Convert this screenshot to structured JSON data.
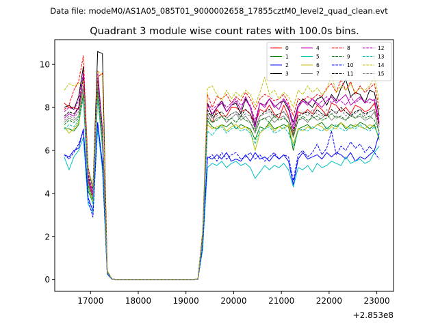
{
  "suptitle": "Data file: modeM0/AS1A05_085T01_9000002658_17855cztM0_level2_quad_clean.evt",
  "chart_data": {
    "type": "line",
    "title": "Quadrant 3 module wise count rates with 100.0s bins.",
    "xlabel": "",
    "ylabel": "",
    "x_offset_label": "+2.853e8",
    "xlim": [
      16250,
      23350
    ],
    "ylim": [
      -0.55,
      11.15
    ],
    "xticks": [
      17000,
      18000,
      19000,
      20000,
      21000,
      22000,
      23000
    ],
    "xtick_labels": [
      "17000",
      "18000",
      "19000",
      "20000",
      "21000",
      "22000",
      "23000"
    ],
    "yticks": [
      0,
      2,
      4,
      6,
      8,
      10
    ],
    "ytick_labels": [
      "0",
      "2",
      "4",
      "6",
      "8",
      "10"
    ],
    "legend_position": "upper-right",
    "legend_columns": 4,
    "x": [
      16450,
      16550,
      16650,
      16750,
      16850,
      16950,
      17050,
      17150,
      17250,
      17350,
      17450,
      17550,
      17650,
      17750,
      17850,
      17950,
      18050,
      18150,
      18250,
      18350,
      18450,
      18550,
      18650,
      18750,
      18850,
      18950,
      19050,
      19150,
      19250,
      19350,
      19450,
      19550,
      19650,
      19750,
      19850,
      19950,
      20050,
      20150,
      20250,
      20350,
      20450,
      20550,
      20650,
      20750,
      20850,
      20950,
      21050,
      21150,
      21250,
      21350,
      21450,
      21550,
      21650,
      21750,
      21850,
      21950,
      22050,
      22150,
      22250,
      22350,
      22450,
      22550,
      22650,
      22750,
      22850,
      22950,
      23050
    ],
    "series": [
      {
        "name": "0",
        "color": "#ff0000",
        "dash": "solid",
        "values": [
          8.2,
          8.0,
          8.0,
          7.9,
          9.0,
          4.6,
          3.8,
          9.2,
          6.5,
          0.35,
          0.02,
          0,
          0,
          0,
          0,
          0,
          0,
          0,
          0,
          0,
          0,
          0,
          0,
          0,
          0,
          0,
          0,
          0,
          0.02,
          1.9,
          7.7,
          7.3,
          7.9,
          7.6,
          7.6,
          8.0,
          8.0,
          7.8,
          7.9,
          7.7,
          7.2,
          7.9,
          7.8,
          8.1,
          7.7,
          7.5,
          8.1,
          7.6,
          6.7,
          7.8,
          7.7,
          7.9,
          7.7,
          8.1,
          7.9,
          7.6,
          8.2,
          8.1,
          7.8,
          8.0,
          7.7,
          8.1,
          8.0,
          7.8,
          7.9,
          8.2,
          7.2
        ]
      },
      {
        "name": "1",
        "color": "#008000",
        "dash": "solid",
        "values": [
          7.0,
          7.0,
          6.9,
          7.2,
          8.6,
          4.1,
          3.6,
          8.5,
          6.2,
          0.3,
          0.02,
          0,
          0,
          0,
          0,
          0,
          0,
          0,
          0,
          0,
          0,
          0,
          0,
          0,
          0,
          0,
          0,
          0,
          0.02,
          1.8,
          7.4,
          7.1,
          7.0,
          7.2,
          7.1,
          7.3,
          7.0,
          7.2,
          7.1,
          7.0,
          6.5,
          7.1,
          7.0,
          7.3,
          7.0,
          7.1,
          7.2,
          7.1,
          6.0,
          7.0,
          7.1,
          7.2,
          7.0,
          7.2,
          7.3,
          7.0,
          7.2,
          7.1,
          7.3,
          7.0,
          7.2,
          7.1,
          7.3,
          7.2,
          7.0,
          7.2,
          6.5
        ]
      },
      {
        "name": "2",
        "color": "#0000ff",
        "dash": "solid",
        "values": [
          5.8,
          5.7,
          6.0,
          6.1,
          7.0,
          3.8,
          3.2,
          7.3,
          5.4,
          0.25,
          0.01,
          0,
          0,
          0,
          0,
          0,
          0,
          0,
          0,
          0,
          0,
          0,
          0,
          0,
          0,
          0,
          0,
          0,
          0.02,
          1.5,
          5.7,
          5.6,
          5.8,
          5.6,
          5.9,
          5.5,
          5.6,
          5.5,
          5.8,
          5.5,
          5.9,
          5.6,
          5.7,
          5.5,
          5.8,
          5.6,
          5.8,
          5.5,
          4.4,
          5.6,
          5.9,
          5.6,
          5.7,
          5.8,
          5.6,
          5.9,
          5.7,
          5.9,
          5.8,
          5.6,
          5.9,
          5.5,
          5.7,
          5.6,
          5.8,
          6.0,
          6.8
        ]
      },
      {
        "name": "3",
        "color": "#000000",
        "dash": "solid",
        "values": [
          8.0,
          8.1,
          7.9,
          8.5,
          9.9,
          5.2,
          4.2,
          10.6,
          10.5,
          0.4,
          0.02,
          0,
          0,
          0,
          0,
          0,
          0,
          0,
          0,
          0,
          0,
          0,
          0,
          0,
          0,
          0,
          0,
          0,
          0.03,
          2.2,
          8.2,
          7.6,
          8.0,
          8.3,
          7.8,
          8.1,
          8.2,
          7.7,
          8.4,
          8.0,
          7.2,
          8.2,
          8.1,
          8.4,
          8.0,
          8.2,
          8.3,
          7.9,
          7.3,
          8.1,
          8.4,
          8.2,
          8.0,
          8.4,
          8.5,
          8.1,
          8.6,
          8.3,
          8.9,
          9.3,
          8.5,
          8.7,
          8.6,
          8.2,
          8.8,
          8.7,
          7.6
        ]
      },
      {
        "name": "4",
        "color": "#bf00bf",
        "dash": "solid",
        "values": [
          7.5,
          7.7,
          7.6,
          8.0,
          9.5,
          4.7,
          3.9,
          9.7,
          7.0,
          0.35,
          0.02,
          0,
          0,
          0,
          0,
          0,
          0,
          0,
          0,
          0,
          0,
          0,
          0,
          0,
          0,
          0,
          0,
          0,
          0.02,
          2.0,
          8.1,
          7.7,
          8.0,
          8.2,
          7.8,
          8.1,
          8.3,
          7.9,
          8.5,
          8.0,
          7.1,
          8.2,
          8.0,
          8.4,
          8.1,
          7.9,
          8.4,
          8.0,
          7.0,
          8.0,
          8.3,
          8.1,
          8.4,
          8.2,
          8.0,
          8.3,
          8.5,
          8.2,
          8.4,
          8.6,
          8.1,
          8.3,
          8.5,
          8.2,
          8.4,
          8.3,
          7.3
        ]
      },
      {
        "name": "5",
        "color": "#00bfbf",
        "dash": "solid",
        "values": [
          5.7,
          5.1,
          5.7,
          6.0,
          6.6,
          3.5,
          3.1,
          7.0,
          5.1,
          0.25,
          0.01,
          0,
          0,
          0,
          0,
          0,
          0,
          0,
          0,
          0,
          0,
          0,
          0,
          0,
          0,
          0,
          0,
          0,
          0.02,
          1.4,
          5.2,
          5.4,
          5.3,
          5.5,
          5.2,
          5.4,
          5.5,
          5.3,
          5.4,
          5.2,
          4.7,
          5.0,
          5.3,
          5.1,
          5.3,
          5.2,
          5.4,
          5.1,
          4.3,
          5.2,
          5.1,
          5.3,
          5.0,
          5.4,
          5.2,
          5.3,
          5.5,
          5.4,
          5.3,
          5.7,
          5.4,
          5.5,
          5.6,
          5.4,
          5.5,
          5.9,
          6.2
        ]
      },
      {
        "name": "6",
        "color": "#bfbf00",
        "dash": "solid",
        "values": [
          7.1,
          6.8,
          7.0,
          7.3,
          8.5,
          4.3,
          3.6,
          8.6,
          6.3,
          0.3,
          0.02,
          0,
          0,
          0,
          0,
          0,
          0,
          0,
          0,
          0,
          0,
          0,
          0,
          0,
          0,
          0,
          0,
          0,
          0.02,
          1.8,
          7.2,
          7.0,
          7.1,
          7.2,
          6.9,
          7.1,
          7.2,
          7.0,
          7.1,
          6.9,
          6.0,
          6.8,
          7.0,
          7.2,
          6.9,
          7.1,
          7.0,
          7.2,
          6.3,
          7.0,
          6.9,
          7.1,
          7.0,
          7.2,
          7.1,
          6.9,
          7.1,
          7.0,
          7.3,
          7.1,
          7.0,
          7.2,
          7.1,
          7.0,
          7.2,
          7.1,
          6.6
        ]
      },
      {
        "name": "7",
        "color": "#808080",
        "dash": "solid",
        "values": [
          7.3,
          7.5,
          7.4,
          7.6,
          8.9,
          4.4,
          3.8,
          9.0,
          6.6,
          0.32,
          0.02,
          0,
          0,
          0,
          0,
          0,
          0,
          0,
          0,
          0,
          0,
          0,
          0,
          0,
          0,
          0,
          0,
          0,
          0.02,
          1.9,
          7.7,
          7.3,
          7.5,
          7.6,
          7.3,
          7.5,
          7.7,
          7.4,
          7.6,
          7.3,
          6.8,
          7.4,
          7.5,
          7.6,
          7.3,
          7.5,
          7.6,
          7.3,
          6.6,
          7.4,
          7.5,
          7.3,
          7.6,
          7.4,
          7.5,
          7.7,
          7.4,
          7.6,
          7.5,
          7.4,
          7.7,
          7.5,
          7.6,
          7.4,
          7.5,
          7.8,
          6.8
        ]
      },
      {
        "name": "8",
        "color": "#ff0000",
        "dash": "dashed",
        "values": [
          7.9,
          8.1,
          8.8,
          9.2,
          10.4,
          5.0,
          3.9,
          9.4,
          9.6,
          0.4,
          0.02,
          0,
          0,
          0,
          0,
          0,
          0,
          0,
          0,
          0,
          0,
          0,
          0,
          0,
          0,
          0,
          0,
          0,
          0.03,
          2.1,
          8.6,
          8.0,
          8.5,
          8.4,
          8.6,
          8.2,
          8.5,
          8.3,
          8.7,
          8.4,
          7.9,
          8.4,
          8.6,
          8.5,
          8.3,
          8.4,
          8.6,
          8.2,
          7.6,
          8.4,
          8.3,
          8.5,
          8.4,
          8.6,
          8.5,
          8.9,
          9.1,
          8.7,
          9.3,
          8.8,
          9.2,
          8.6,
          9.0,
          8.7,
          8.9,
          9.1,
          7.9
        ]
      },
      {
        "name": "9",
        "color": "#008000",
        "dash": "dashed",
        "values": [
          7.2,
          7.4,
          7.3,
          7.5,
          8.6,
          4.4,
          3.7,
          8.8,
          6.4,
          0.3,
          0.02,
          0,
          0,
          0,
          0,
          0,
          0,
          0,
          0,
          0,
          0,
          0,
          0,
          0,
          0,
          0,
          0,
          0,
          0.02,
          1.9,
          7.5,
          7.3,
          7.4,
          7.6,
          7.4,
          7.5,
          7.3,
          7.6,
          7.4,
          7.3,
          6.9,
          7.4,
          7.5,
          7.3,
          7.6,
          7.4,
          7.5,
          7.3,
          6.7,
          7.4,
          7.6,
          7.4,
          7.5,
          7.6,
          7.4,
          7.5,
          7.7,
          7.5,
          7.6,
          7.4,
          7.6,
          7.5,
          7.7,
          7.5,
          7.6,
          7.4,
          6.9
        ]
      },
      {
        "name": "10",
        "color": "#0000ff",
        "dash": "dashed",
        "values": [
          5.8,
          5.6,
          5.9,
          6.3,
          6.9,
          3.7,
          2.9,
          7.3,
          5.3,
          0.25,
          0.01,
          0,
          0,
          0,
          0,
          0,
          0,
          0,
          0,
          0,
          0,
          0,
          0,
          0,
          0,
          0,
          0,
          0,
          0.02,
          1.5,
          5.6,
          5.8,
          5.5,
          5.9,
          5.6,
          5.8,
          5.9,
          5.6,
          5.7,
          5.9,
          5.6,
          5.8,
          5.5,
          5.7,
          5.9,
          5.6,
          5.8,
          5.7,
          4.6,
          5.8,
          6.0,
          5.7,
          5.9,
          6.3,
          5.8,
          6.1,
          6.9,
          5.8,
          6.2,
          6.0,
          6.4,
          6.1,
          6.3,
          5.9,
          6.2,
          5.9,
          5.6
        ]
      },
      {
        "name": "11",
        "color": "#000000",
        "dash": "dashed",
        "values": [
          7.6,
          7.8,
          7.7,
          8.0,
          9.4,
          4.8,
          4.0,
          9.4,
          6.9,
          0.35,
          0.02,
          0,
          0,
          0,
          0,
          0,
          0,
          0,
          0,
          0,
          0,
          0,
          0,
          0,
          0,
          0,
          0,
          0,
          0.02,
          2.0,
          7.9,
          7.5,
          7.7,
          7.8,
          7.5,
          7.7,
          7.8,
          7.6,
          7.9,
          7.7,
          7.0,
          7.6,
          7.8,
          7.9,
          7.6,
          7.7,
          7.8,
          7.5,
          6.9,
          7.6,
          7.7,
          7.8,
          7.6,
          7.9,
          7.7,
          7.6,
          7.9,
          7.7,
          8.0,
          7.8,
          7.6,
          7.8,
          7.9,
          7.7,
          7.8,
          7.9,
          7.2
        ]
      },
      {
        "name": "12",
        "color": "#bf00bf",
        "dash": "dashed",
        "values": [
          7.8,
          8.0,
          7.9,
          8.3,
          9.6,
          4.9,
          4.0,
          9.6,
          7.0,
          0.35,
          0.02,
          0,
          0,
          0,
          0,
          0,
          0,
          0,
          0,
          0,
          0,
          0,
          0,
          0,
          0,
          0,
          0,
          0,
          0.02,
          2.0,
          8.2,
          7.9,
          8.1,
          8.3,
          8.0,
          8.2,
          8.4,
          8.1,
          8.3,
          8.1,
          7.4,
          8.2,
          8.1,
          8.4,
          8.0,
          8.2,
          8.4,
          8.1,
          7.2,
          8.1,
          8.3,
          8.2,
          8.4,
          8.1,
          8.3,
          8.5,
          8.2,
          8.4,
          8.3,
          8.1,
          8.5,
          8.2,
          8.4,
          8.3,
          8.2,
          8.4,
          7.4
        ]
      },
      {
        "name": "13",
        "color": "#00bfbf",
        "dash": "dashed",
        "values": [
          7.0,
          7.2,
          7.1,
          7.4,
          8.4,
          4.2,
          3.5,
          8.4,
          6.2,
          0.3,
          0.02,
          0,
          0,
          0,
          0,
          0,
          0,
          0,
          0,
          0,
          0,
          0,
          0,
          0,
          0,
          0,
          0,
          0,
          0.02,
          1.8,
          6.9,
          6.7,
          7.0,
          7.1,
          6.8,
          7.0,
          7.1,
          6.9,
          7.0,
          6.8,
          6.3,
          6.9,
          7.0,
          7.1,
          6.8,
          6.9,
          7.1,
          6.8,
          6.2,
          6.9,
          7.0,
          6.9,
          7.1,
          7.0,
          6.9,
          7.1,
          6.9,
          7.2,
          7.0,
          6.9,
          7.1,
          7.0,
          7.2,
          7.0,
          6.9,
          7.1,
          6.6
        ]
      },
      {
        "name": "14",
        "color": "#bfbf00",
        "dash": "dashed",
        "values": [
          8.8,
          9.1,
          9.0,
          9.1,
          9.2,
          5.2,
          4.3,
          9.7,
          9.5,
          0.4,
          0.02,
          0,
          0,
          0,
          0,
          0,
          0,
          0,
          0,
          0,
          0,
          0,
          0,
          0,
          0,
          0,
          0,
          0,
          0.03,
          2.3,
          8.9,
          9.0,
          8.6,
          8.3,
          8.8,
          8.4,
          8.7,
          8.5,
          8.8,
          8.6,
          8.1,
          8.7,
          9.4,
          8.6,
          8.8,
          8.4,
          8.7,
          8.5,
          8.0,
          8.8,
          8.6,
          9.0,
          8.7,
          8.9,
          8.6,
          8.8,
          9.5,
          8.7,
          9.0,
          8.8,
          9.1,
          8.7,
          8.9,
          8.8,
          9.0,
          9.4,
          8.3
        ]
      },
      {
        "name": "15",
        "color": "#808080",
        "dash": "dashed",
        "values": [
          7.4,
          7.6,
          7.5,
          7.8,
          9.0,
          4.5,
          3.8,
          9.1,
          6.7,
          0.33,
          0.02,
          0,
          0,
          0,
          0,
          0,
          0,
          0,
          0,
          0,
          0,
          0,
          0,
          0,
          0,
          0,
          0,
          0,
          0.02,
          1.9,
          7.8,
          7.5,
          7.6,
          7.8,
          7.5,
          7.7,
          7.8,
          7.5,
          7.7,
          7.6,
          7.0,
          7.6,
          7.7,
          7.8,
          7.5,
          7.7,
          7.8,
          7.5,
          6.8,
          7.6,
          7.8,
          7.6,
          7.9,
          7.7,
          7.6,
          7.9,
          7.7,
          7.8,
          7.9,
          7.6,
          7.8,
          7.7,
          7.9,
          7.6,
          7.8,
          7.9,
          7.1
        ]
      }
    ]
  }
}
